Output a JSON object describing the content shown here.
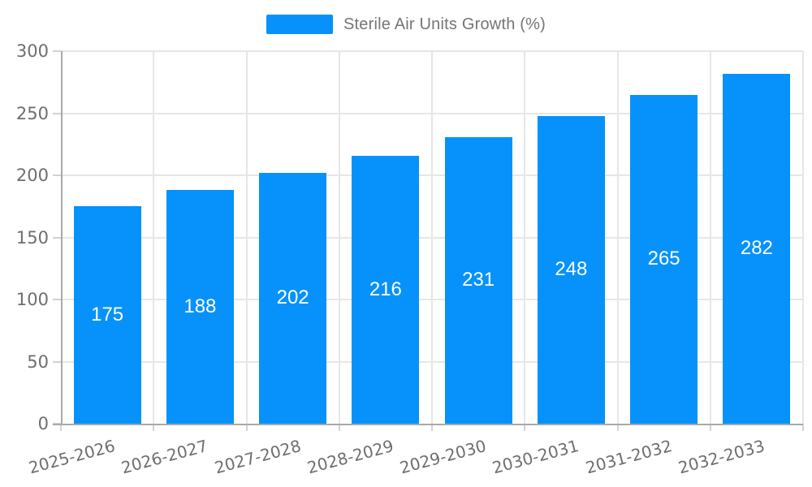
{
  "chart_data": {
    "type": "bar",
    "title": "Sterile Air Units Growth (%)",
    "categories": [
      "2025-2026",
      "2026-2027",
      "2027-2028",
      "2028-2029",
      "2029-2030",
      "2030-2031",
      "2031-2032",
      "2032-2033"
    ],
    "series": [
      {
        "name": "Sterile Air Units Growth (%)",
        "values": [
          175,
          188,
          202,
          216,
          231,
          248,
          265,
          282
        ]
      }
    ],
    "values": [
      175,
      188,
      202,
      216,
      231,
      248,
      265,
      282
    ],
    "xlabel": "",
    "ylabel": "",
    "ylim": [
      0,
      300
    ],
    "yticks": [
      0,
      50,
      100,
      150,
      200,
      250,
      300
    ],
    "grid": true,
    "legend_position": "top-center",
    "value_label_style": "white, centered inside bars",
    "xlabel_rotation_deg": -15,
    "colors": {
      "bar": "#0692fa",
      "value_label": "#ffffff",
      "grid": "#e6e6e6",
      "axis": "#a9a9a9",
      "tick": "#d2d2d2",
      "tick_label": "#6e6e6e",
      "legend_text": "#757575",
      "background": "#ffffff"
    }
  }
}
